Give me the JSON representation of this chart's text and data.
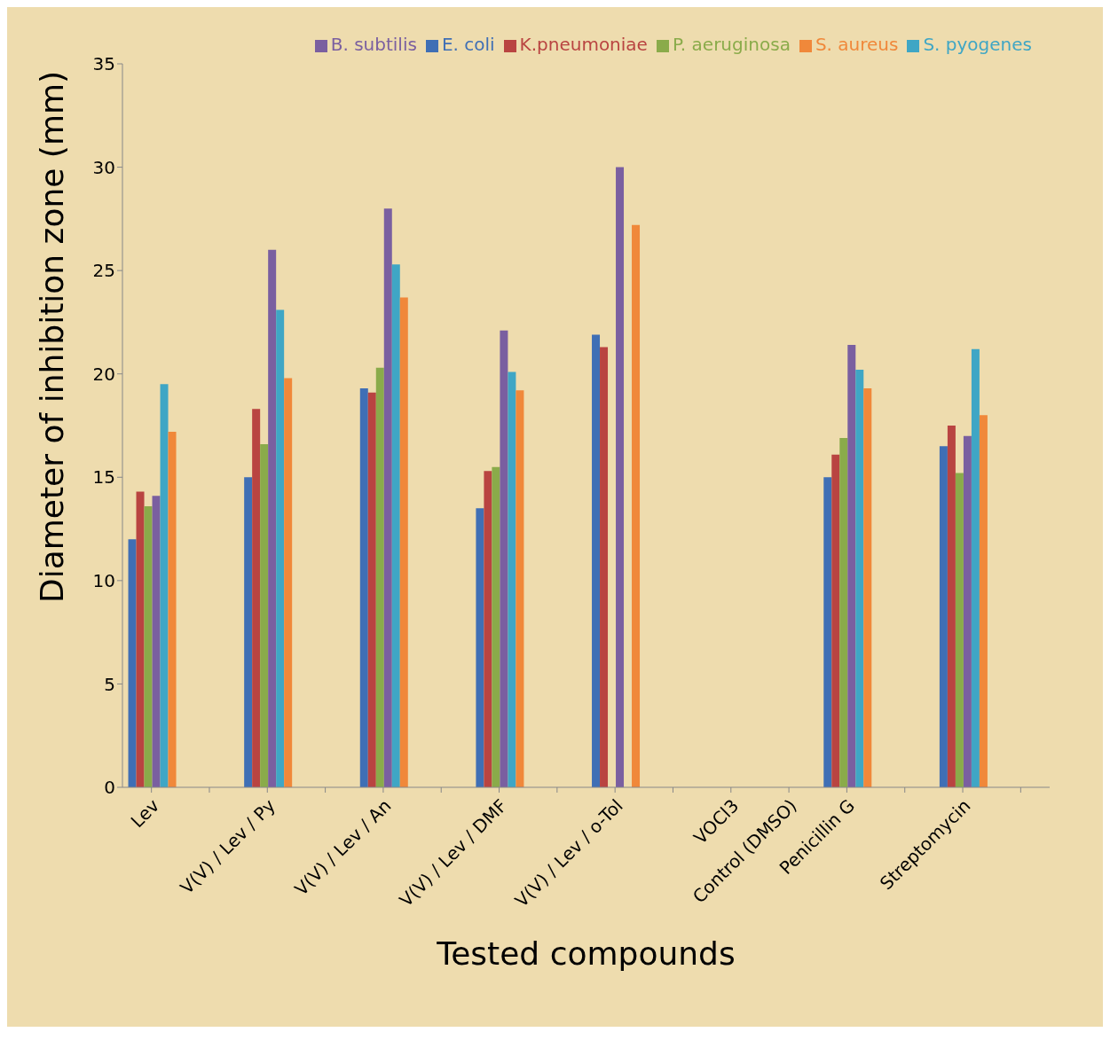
{
  "chart_data": {
    "type": "bar",
    "xlabel": "Tested compounds",
    "ylabel": "Diameter of inhibition zone (mm)",
    "categories": [
      "Lev",
      null,
      "V(V) / Lev / Py",
      null,
      "V(V) / Lev / An",
      null,
      "V(V) / Lev / DMF",
      null,
      "V(V) / Lev /  o-Tol",
      null,
      "VOCl3",
      "Control (DMSO)",
      "Penicillin G",
      null,
      "Streptomycin",
      null
    ],
    "series": [
      {
        "name": "E. coli",
        "color": "#3f6fb5",
        "values": [
          12,
          0,
          15,
          0,
          19.3,
          0,
          13.5,
          0,
          21.9,
          0,
          0,
          0,
          15,
          0,
          16.5,
          0
        ]
      },
      {
        "name": "K.pneumoniae",
        "color": "#b94441",
        "values": [
          14.3,
          0,
          18.3,
          0,
          19.1,
          0,
          15.3,
          0,
          21.3,
          0,
          0,
          0,
          16.1,
          0,
          17.5,
          0
        ]
      },
      {
        "name": "P. aeruginosa",
        "color": "#8aab4a",
        "values": [
          13.6,
          0,
          16.6,
          0,
          20.3,
          0,
          15.5,
          0,
          0,
          0,
          0,
          0,
          16.9,
          0,
          15.2,
          0
        ]
      },
      {
        "name": "B. subtilis",
        "color": "#7a5fa0",
        "values": [
          14.1,
          0,
          26,
          0,
          28,
          0,
          22.1,
          0,
          30,
          0,
          0,
          0,
          21.4,
          0,
          17,
          0
        ]
      },
      {
        "name": "S. pyogenes",
        "color": "#3fa6c5",
        "values": [
          19.5,
          0,
          23.1,
          0,
          25.3,
          0,
          20.1,
          0,
          0,
          0,
          0,
          0,
          20.2,
          0,
          21.2,
          0
        ]
      },
      {
        "name": "S. aureus",
        "color": "#f0883a",
        "values": [
          17.2,
          0,
          19.8,
          0,
          23.7,
          0,
          19.2,
          0,
          27.2,
          0,
          0,
          0,
          19.3,
          0,
          18,
          0
        ]
      }
    ],
    "ylim": [
      0,
      35
    ],
    "yticks": [
      0,
      5,
      10,
      15,
      20,
      25,
      30,
      35
    ],
    "grid": false,
    "legend": "top right"
  }
}
